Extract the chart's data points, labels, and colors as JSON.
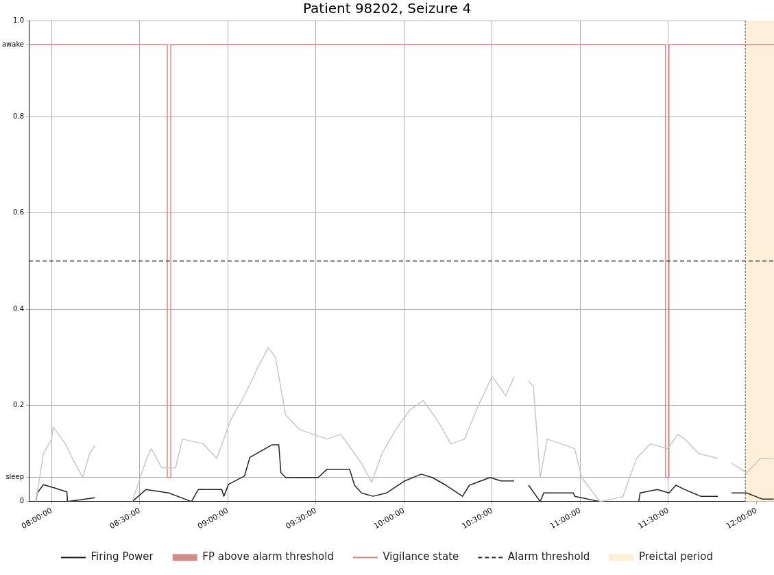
{
  "chart_data": {
    "type": "line",
    "title": "Patient 98202, Seizure 4",
    "xlim": [
      7.87,
      12.1
    ],
    "ylim": [
      0,
      1
    ],
    "xticks": [
      {
        "value": 8,
        "label": "08:00:00"
      },
      {
        "value": 8.5,
        "label": "08:30:00"
      },
      {
        "value": 9,
        "label": "09:00:00"
      },
      {
        "value": 9.5,
        "label": "09:30:00"
      },
      {
        "value": 10,
        "label": "10:00:00"
      },
      {
        "value": 10.5,
        "label": "10:30:00"
      },
      {
        "value": 11,
        "label": "11:00:00"
      },
      {
        "value": 11.5,
        "label": "11:30:00"
      },
      {
        "value": 12,
        "label": "12:00:00"
      }
    ],
    "yticks": [
      0,
      {
        "value": 0.05,
        "label": "sleep"
      },
      0.2,
      0.4,
      0.6,
      0.8,
      {
        "value": 0.95,
        "label": "awake"
      },
      {
        "value": 1,
        "label": "1.0"
      }
    ],
    "grid": true,
    "legend": "bottom",
    "series": [
      {
        "type": "line",
        "color": "#c8c8c8",
        "x": [
          7.91,
          7.953,
          8.0,
          8.008,
          8.078,
          8.117,
          8.176,
          8.215,
          8.246
        ],
        "values": [
          0,
          0.1,
          0.13,
          0.155,
          0.12,
          0.09,
          0.05,
          0.1,
          0.117
        ]
      },
      {
        "type": "line",
        "color": "#c8c8c8",
        "x": [
          8.457,
          8.539,
          8.566,
          8.625,
          8.703,
          8.742,
          8.859,
          8.938,
          9.016,
          9.094,
          9.172,
          9.23,
          9.27,
          9.328,
          9.406,
          9.484,
          9.563,
          9.641,
          9.758,
          9.816,
          9.875,
          9.953,
          10.031,
          10.109,
          10.188,
          10.266,
          10.344,
          10.422,
          10.5,
          10.578,
          10.625
        ],
        "values": [
          0,
          0.09,
          0.11,
          0.07,
          0.07,
          0.13,
          0.12,
          0.09,
          0.17,
          0.22,
          0.28,
          0.32,
          0.3,
          0.18,
          0.15,
          0.14,
          0.13,
          0.14,
          0.08,
          0.04,
          0.1,
          0.15,
          0.19,
          0.21,
          0.17,
          0.12,
          0.13,
          0.2,
          0.26,
          0.22,
          0.26
        ]
      },
      {
        "type": "line",
        "color": "#c8c8c8",
        "x": [
          10.707,
          10.734,
          10.773,
          10.813,
          10.891,
          10.969,
          11.008,
          11.113,
          11.242,
          11.32,
          11.398,
          11.496,
          11.555,
          11.594,
          11.672,
          11.781
        ],
        "values": [
          0.25,
          0.24,
          0.05,
          0.13,
          0.12,
          0.11,
          0.05,
          0,
          0.01,
          0.09,
          0.12,
          0.11,
          0.14,
          0.13,
          0.1,
          0.09
        ]
      },
      {
        "type": "line",
        "color": "#c8c8c8",
        "x": [
          11.859,
          11.945,
          12.023,
          12.098
        ],
        "values": [
          0.08,
          0.06,
          0.09,
          0.09
        ]
      },
      {
        "type": "line",
        "color": "#222222",
        "x": [
          7.91,
          7.918,
          7.953,
          8.02,
          8.086,
          8.09,
          8.246
        ],
        "values": [
          0,
          0.018,
          0.035,
          0.028,
          0.02,
          0,
          0.008
        ]
      },
      {
        "type": "line",
        "name": "Firing Power",
        "color": "#222222",
        "x": [
          8.457,
          8.535,
          8.664,
          8.793,
          8.832,
          8.965,
          8.977,
          9.004,
          9.094,
          9.125,
          9.25,
          9.289,
          9.301,
          9.328,
          9.512,
          9.563,
          9.691,
          9.719,
          9.758,
          9.824,
          9.902,
          10.004,
          10.098,
          10.16,
          10.238,
          10.332,
          10.371,
          10.488,
          10.551,
          10.625
        ],
        "values": [
          0,
          0.025,
          0.018,
          0,
          0.025,
          0.025,
          0.011,
          0.036,
          0.053,
          0.092,
          0.118,
          0.118,
          0.06,
          0.05,
          0.05,
          0.067,
          0.067,
          0.034,
          0.018,
          0.011,
          0.018,
          0.043,
          0.057,
          0.05,
          0.034,
          0.011,
          0.034,
          0.05,
          0.043,
          0.043
        ]
      },
      {
        "type": "line",
        "color": "#222222",
        "x": [
          10.707,
          10.773,
          10.793,
          10.961,
          10.969,
          11.113,
          11.332,
          11.34,
          11.438,
          11.504,
          11.543,
          11.594,
          11.684,
          11.781
        ],
        "values": [
          0.034,
          0,
          0.018,
          0.018,
          0.011,
          0,
          0,
          0.018,
          0.025,
          0.018,
          0.034,
          0.025,
          0.011,
          0.011
        ]
      },
      {
        "type": "line",
        "color": "#222222",
        "x": [
          11.859,
          11.945,
          12.035,
          12.098
        ],
        "values": [
          0.018,
          0.018,
          0.005,
          0.005
        ]
      },
      {
        "type": "area",
        "name": "FP above alarm threshold",
        "color": "#d08b8b"
      },
      {
        "type": "line",
        "name": "Vigilance state",
        "color": "#d9888a",
        "x": [
          7.87,
          8.656,
          8.656,
          8.676,
          8.676,
          11.484,
          11.484,
          11.504,
          11.504,
          12.1
        ],
        "values": [
          0.95,
          0.95,
          0.05,
          0.05,
          0.95,
          0.95,
          0.05,
          0.05,
          0.95,
          0.95
        ]
      }
    ],
    "ref_lines": [
      {
        "axis": "y",
        "value": 0.5,
        "label": "Alarm threshold",
        "color": "#333333",
        "line_style": "dashed"
      },
      {
        "axis": "x",
        "value": 11.9375,
        "color": "#333333",
        "line_style": "dashed"
      }
    ],
    "bands": [
      {
        "axis": "x",
        "from": 11.9375,
        "to": 12.1,
        "label": "Preictal period",
        "color": "#fdefd8"
      }
    ]
  }
}
